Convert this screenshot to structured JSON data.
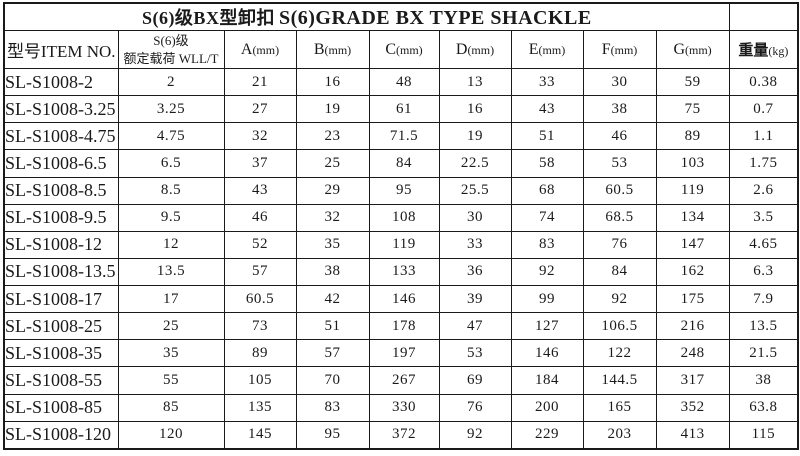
{
  "table": {
    "title": {
      "cn": "S(6)级BX型卸扣",
      "en": "S(6)GRADE BX TYPE SHACKLE"
    },
    "header": {
      "item_label": "型号ITEM NO.",
      "wll_line1": "S(6)级",
      "wll_line2": "额定载荷 WLL/T",
      "dim_columns": [
        {
          "letter": "A",
          "unit": "(mm)"
        },
        {
          "letter": "B",
          "unit": "(mm)"
        },
        {
          "letter": "C",
          "unit": "(mm)"
        },
        {
          "letter": "D",
          "unit": "(mm)"
        },
        {
          "letter": "E",
          "unit": "(mm)"
        },
        {
          "letter": "F",
          "unit": "(mm)"
        },
        {
          "letter": "G",
          "unit": "(mm)"
        }
      ],
      "weight_label": "重量",
      "weight_unit": "(kg)"
    },
    "rows": [
      [
        "SL-S1008-2",
        "2",
        "21",
        "16",
        "48",
        "13",
        "33",
        "30",
        "59",
        "0.38"
      ],
      [
        "SL-S1008-3.25",
        "3.25",
        "27",
        "19",
        "61",
        "16",
        "43",
        "38",
        "75",
        "0.7"
      ],
      [
        "SL-S1008-4.75",
        "4.75",
        "32",
        "23",
        "71.5",
        "19",
        "51",
        "46",
        "89",
        "1.1"
      ],
      [
        "SL-S1008-6.5",
        "6.5",
        "37",
        "25",
        "84",
        "22.5",
        "58",
        "53",
        "103",
        "1.75"
      ],
      [
        "SL-S1008-8.5",
        "8.5",
        "43",
        "29",
        "95",
        "25.5",
        "68",
        "60.5",
        "119",
        "2.6"
      ],
      [
        "SL-S1008-9.5",
        "9.5",
        "46",
        "32",
        "108",
        "30",
        "74",
        "68.5",
        "134",
        "3.5"
      ],
      [
        "SL-S1008-12",
        "12",
        "52",
        "35",
        "119",
        "33",
        "83",
        "76",
        "147",
        "4.65"
      ],
      [
        "SL-S1008-13.5",
        "13.5",
        "57",
        "38",
        "133",
        "36",
        "92",
        "84",
        "162",
        "6.3"
      ],
      [
        "SL-S1008-17",
        "17",
        "60.5",
        "42",
        "146",
        "39",
        "99",
        "92",
        "175",
        "7.9"
      ],
      [
        "SL-S1008-25",
        "25",
        "73",
        "51",
        "178",
        "47",
        "127",
        "106.5",
        "216",
        "13.5"
      ],
      [
        "SL-S1008-35",
        "35",
        "89",
        "57",
        "197",
        "53",
        "146",
        "122",
        "248",
        "21.5"
      ],
      [
        "SL-S1008-55",
        "55",
        "105",
        "70",
        "267",
        "69",
        "184",
        "144.5",
        "317",
        "38"
      ],
      [
        "SL-S1008-85",
        "85",
        "135",
        "83",
        "330",
        "76",
        "200",
        "165",
        "352",
        "63.8"
      ],
      [
        "SL-S1008-120",
        "120",
        "145",
        "95",
        "372",
        "92",
        "229",
        "203",
        "413",
        "115"
      ]
    ]
  },
  "colors": {
    "border": "#1a1a1a",
    "text": "#1a1a1a",
    "background": "#ffffff"
  }
}
